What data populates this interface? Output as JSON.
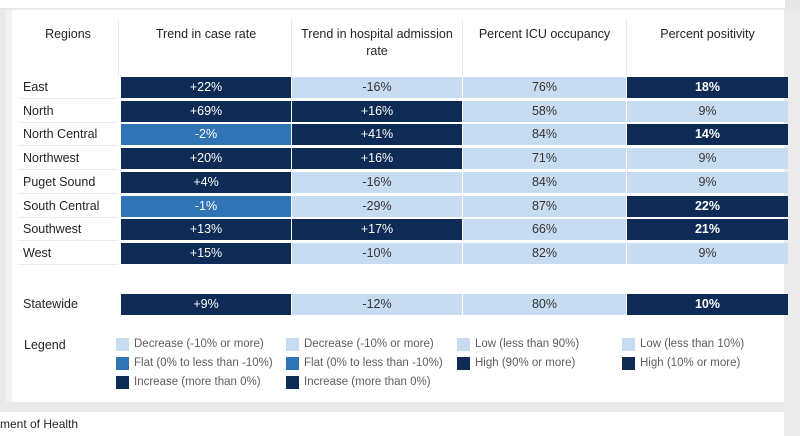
{
  "table": {
    "headers": [
      "Regions",
      "Trend in case rate",
      "Trend in hospital admission rate",
      "Percent ICU occupancy",
      "Percent positivity"
    ],
    "rows": [
      {
        "region": "East",
        "case": "+22%",
        "hosp": "-16%",
        "icu": "76%",
        "pos": "18%"
      },
      {
        "region": "North",
        "case": "+69%",
        "hosp": "+16%",
        "icu": "58%",
        "pos": "9%"
      },
      {
        "region": "North Central",
        "case": "-2%",
        "hosp": "+41%",
        "icu": "84%",
        "pos": "14%"
      },
      {
        "region": "Northwest",
        "case": "+20%",
        "hosp": "+16%",
        "icu": "71%",
        "pos": "9%"
      },
      {
        "region": "Puget Sound",
        "case": "+4%",
        "hosp": "-16%",
        "icu": "84%",
        "pos": "9%"
      },
      {
        "region": "South Central",
        "case": "-1%",
        "hosp": "-29%",
        "icu": "87%",
        "pos": "22%"
      },
      {
        "region": "Southwest",
        "case": "+13%",
        "hosp": "+17%",
        "icu": "66%",
        "pos": "21%"
      },
      {
        "region": "West",
        "case": "+15%",
        "hosp": "-10%",
        "icu": "82%",
        "pos": "9%"
      }
    ],
    "statewide": {
      "region": "Statewide",
      "case": "+9%",
      "hosp": "-12%",
      "icu": "80%",
      "pos": "10%"
    }
  },
  "levels": {
    "case": [
      "inc",
      "inc",
      "flat",
      "inc",
      "inc",
      "flat",
      "inc",
      "inc"
    ],
    "hosp": [
      "dec",
      "inc",
      "inc",
      "inc",
      "dec",
      "dec",
      "inc",
      "dec"
    ],
    "icu": [
      "lo",
      "lo",
      "lo",
      "lo",
      "lo",
      "lo",
      "lo",
      "lo"
    ],
    "pos": [
      "hi",
      "lo",
      "hi",
      "lo",
      "lo",
      "hi",
      "hi",
      "lo"
    ],
    "statewide": {
      "case": "inc",
      "hosp": "dec",
      "icu": "lo",
      "pos": "hi"
    }
  },
  "colors": {
    "increase": "#0d2b54",
    "flat": "#2f75b5",
    "decrease": "#c8dcf1"
  },
  "legend": {
    "title": "Legend",
    "case": [
      "Decrease (-10% or more)",
      "Flat (0% to less than -10%)",
      "Increase (more than 0%)"
    ],
    "hosp": [
      "Decrease (-10% or more)",
      "Flat (0% to less than -10%)",
      "Increase (more than 0%)"
    ],
    "icu": [
      "Low (less than 90%)",
      "High (90% or more)"
    ],
    "pos": [
      "Low (less than 10%)",
      "High (10% or more)"
    ]
  },
  "footer": {
    "text": "ment of Health"
  }
}
